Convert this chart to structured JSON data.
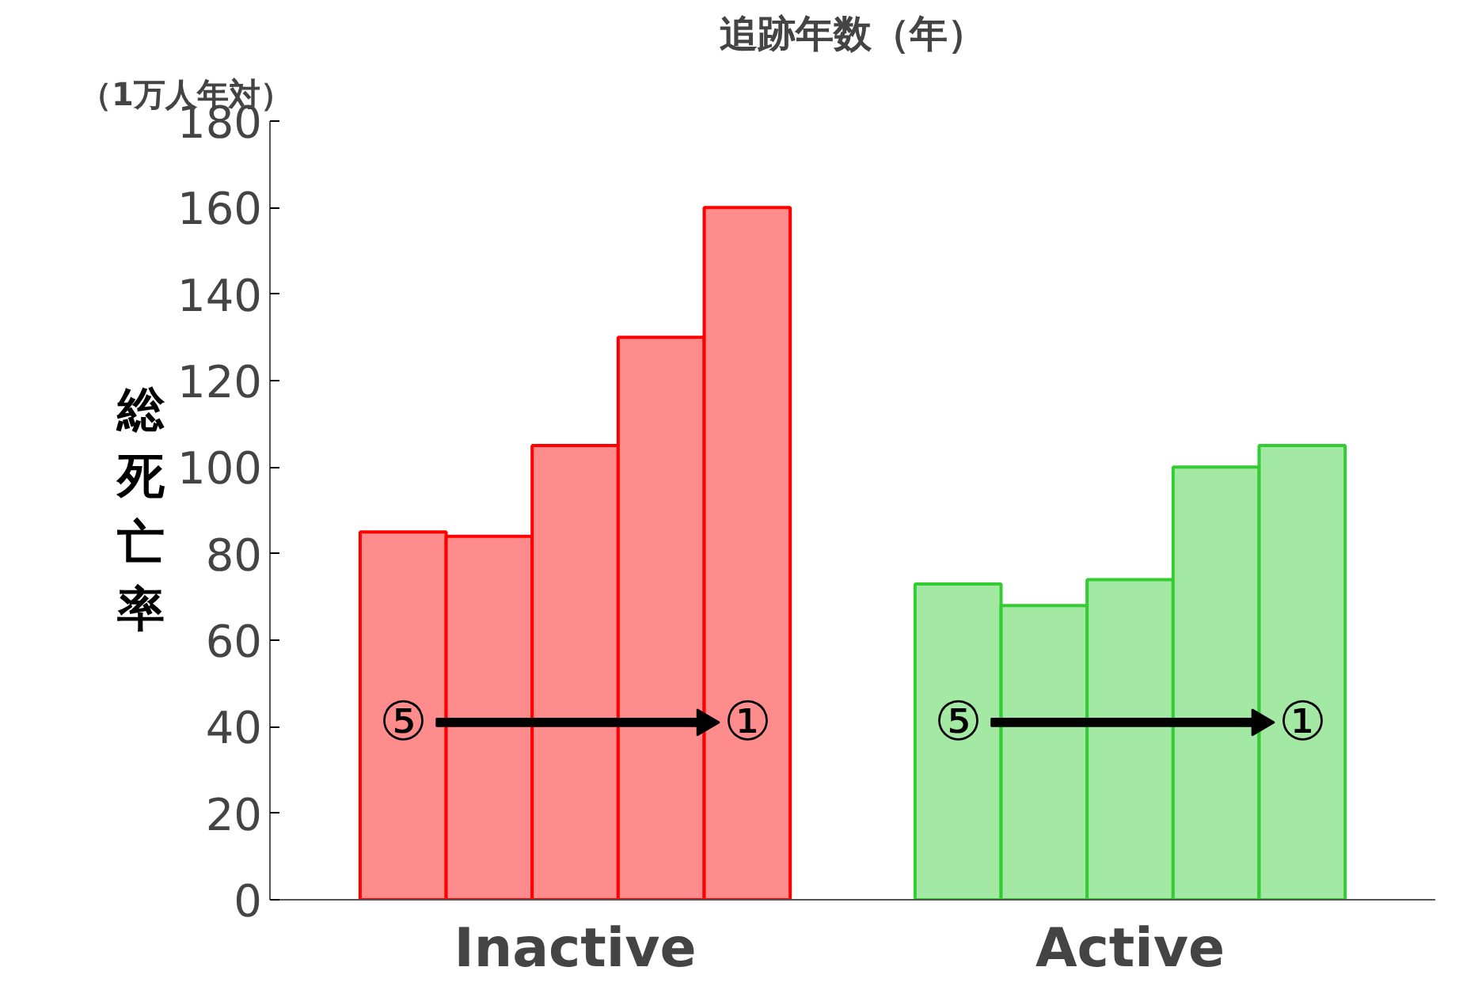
{
  "chart_data": {
    "type": "bar",
    "title": "追跡年数（年）",
    "ylabel": "総死亡率",
    "annotations": [
      "（1万人年対）",
      "⑤",
      "①",
      "⑤",
      "①"
    ],
    "categories": [
      "Inactive",
      "Active"
    ],
    "series": [
      {
        "colors": [
          "#ff0000",
          "#33cc33"
        ],
        "values": [
          85,
          73
        ]
      },
      {
        "colors": [
          "#ff0000",
          "#33cc33"
        ],
        "values": [
          84,
          68
        ]
      },
      {
        "colors": [
          "#ff0000",
          "#33cc33"
        ],
        "values": [
          105,
          74
        ]
      },
      {
        "colors": [
          "#ff0000",
          "#33cc33"
        ],
        "values": [
          130,
          100
        ]
      },
      {
        "colors": [
          "#ff0000",
          "#33cc33"
        ],
        "values": [
          160,
          105
        ]
      }
    ],
    "ylim": [
      0,
      180
    ],
    "yticks": [
      0,
      20,
      40,
      60,
      80,
      100,
      120,
      140,
      160,
      180
    ],
    "grid": false
  }
}
